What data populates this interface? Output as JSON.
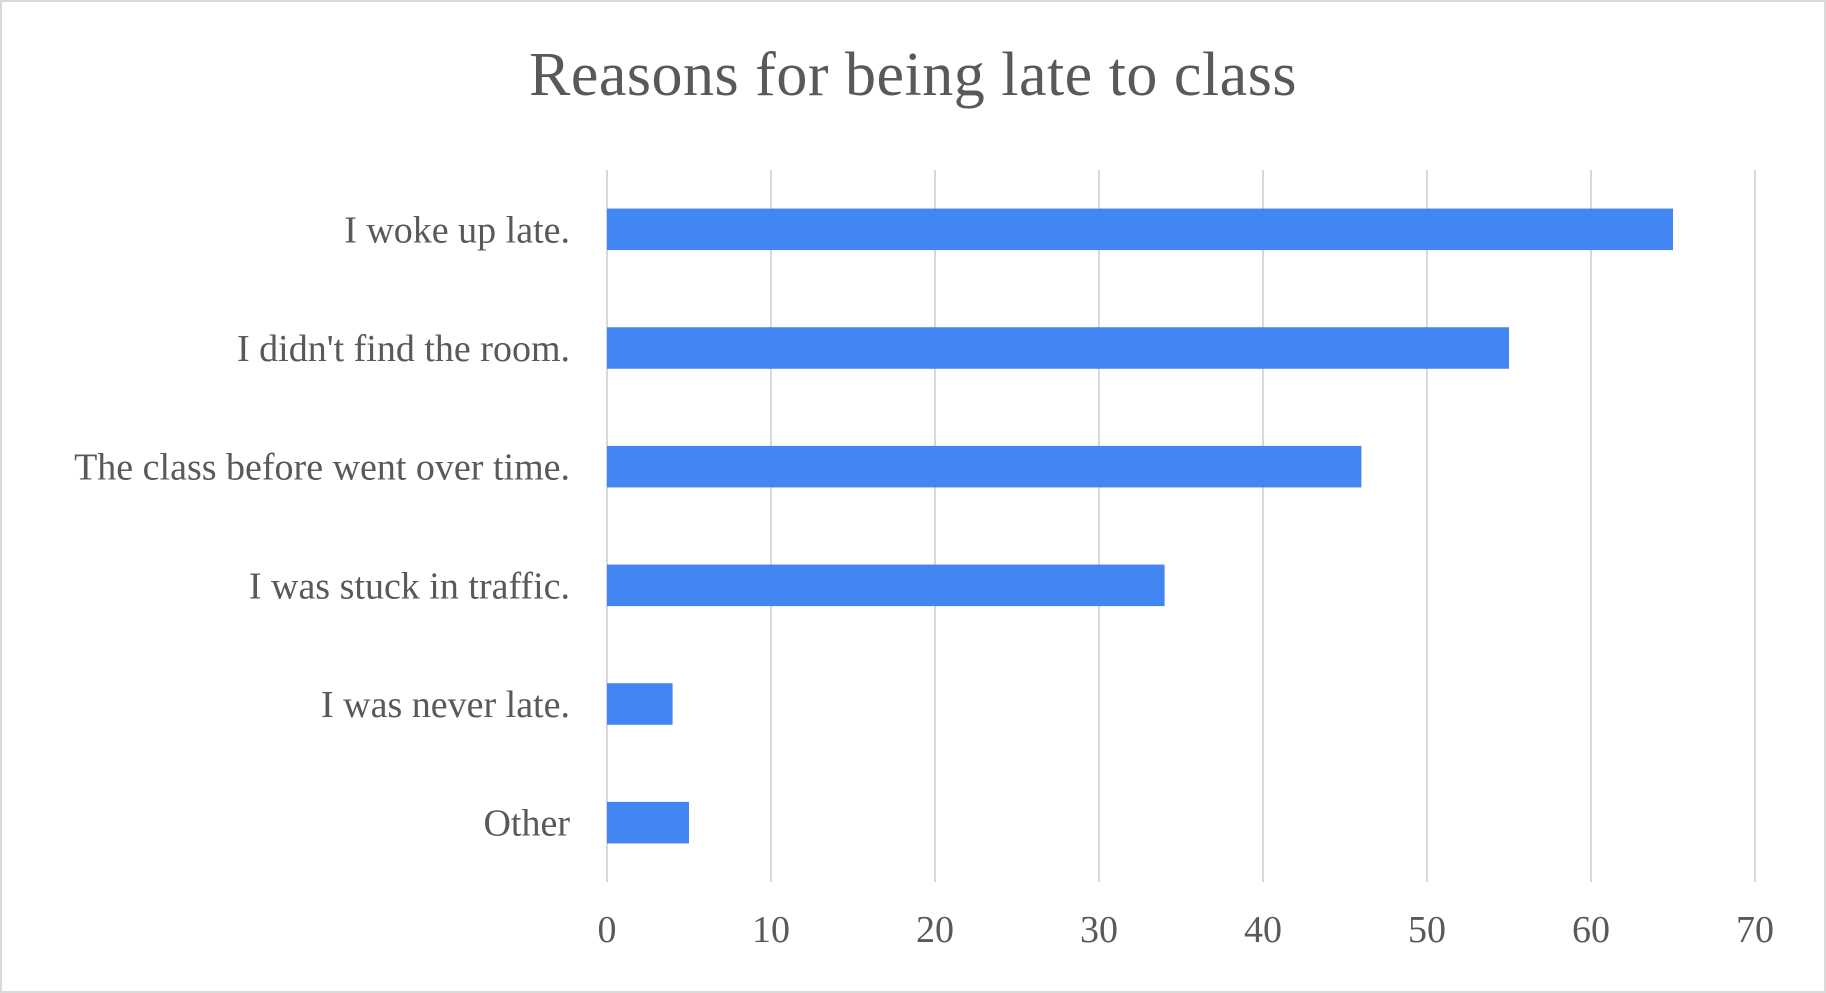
{
  "chart_data": {
    "type": "bar",
    "orientation": "horizontal",
    "title": "Reasons for being late to class",
    "categories": [
      "I woke up late.",
      "I didn't find the room.",
      "The class before went over time.",
      "I was stuck in traffic.",
      "I was never late.",
      "Other"
    ],
    "values": [
      65,
      55,
      46,
      34,
      4,
      5
    ],
    "xlim": [
      0,
      70
    ],
    "xticks": [
      "0",
      "10",
      "20",
      "30",
      "40",
      "50",
      "60",
      "70"
    ],
    "grid": "vertical",
    "legend": "none",
    "bar_color": "#4286f4"
  }
}
